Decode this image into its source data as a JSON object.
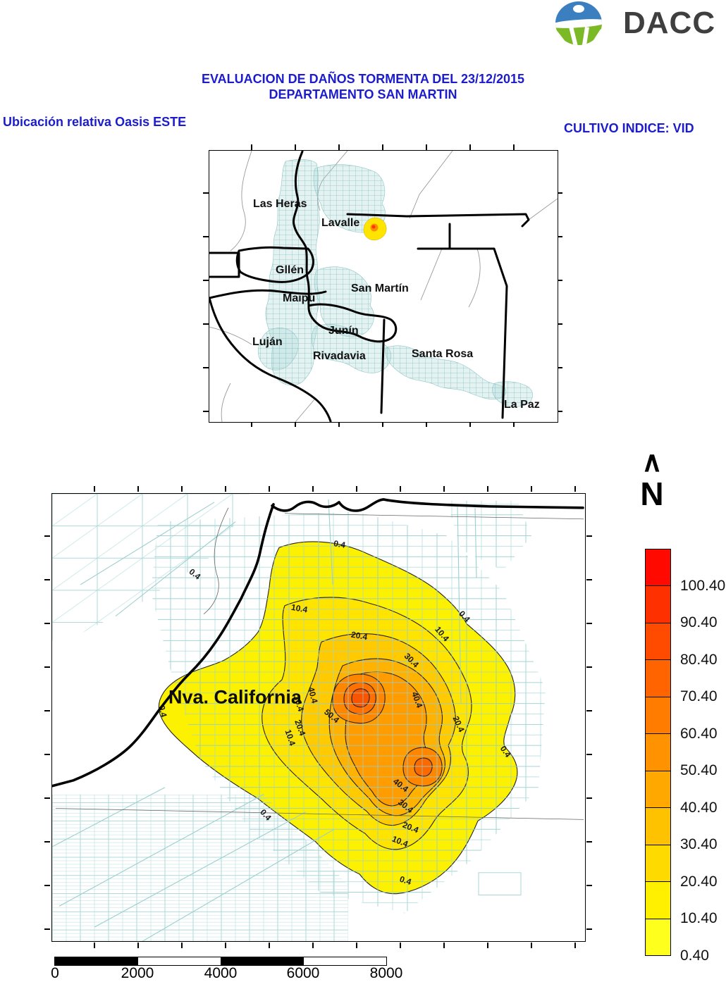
{
  "header": {
    "logo_text": "DACC",
    "title_line1": "EVALUACION DE DAÑOS TORMENTA DEL 23/12/2015",
    "title_line2": "DEPARTAMENTO SAN MARTIN",
    "subtitle_left": "Ubicación relativa Oasis ESTE",
    "subtitle_right": "CULTIVO INDICE: VID",
    "accent_color": "#1c1ccc"
  },
  "locator_map": {
    "departments": [
      "Las Heras",
      "Lavalle",
      "Gllén",
      "Maipú",
      "San Martín",
      "Junín",
      "Luján",
      "Rivadavia",
      "Santa Rosa",
      "La Paz"
    ]
  },
  "main_map": {
    "place_label": "Nva. California",
    "north_caret": "∧",
    "north_letter": "N",
    "contour_values": {
      "c0": "0.4",
      "c10": "10.4",
      "c20": "20.4",
      "c30": "30.4",
      "c40": "40.4",
      "c50": "50.4"
    }
  },
  "legend": {
    "entries": [
      {
        "color": "#FF0900",
        "label": "100.40"
      },
      {
        "color": "#FF3000",
        "label": "90.40"
      },
      {
        "color": "#FF4B00",
        "label": "80.40"
      },
      {
        "color": "#FF6400",
        "label": "70.40"
      },
      {
        "color": "#FF7C00",
        "label": "60.40"
      },
      {
        "color": "#FF9200",
        "label": "50.40"
      },
      {
        "color": "#FFA900",
        "label": "40.40"
      },
      {
        "color": "#FFC200",
        "label": "30.40"
      },
      {
        "color": "#FFDA00",
        "label": "20.40"
      },
      {
        "color": "#FFF000",
        "label": "10.40"
      },
      {
        "color": "#FFFF1E",
        "label": "0.40"
      }
    ]
  },
  "scale_bar": {
    "labels": [
      "0",
      "2000",
      "4000",
      "6000",
      "8000"
    ]
  }
}
